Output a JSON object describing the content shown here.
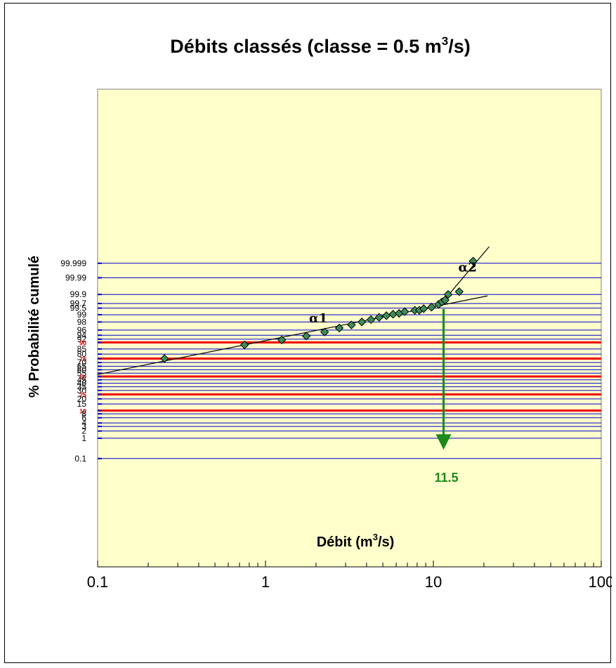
{
  "chart_data": {
    "type": "scatter",
    "title": "Débits classés (classe = 0.5 m",
    "title_sup": "3",
    "title_suffix": "/s)",
    "xlabel": "Débit (m",
    "xlabel_sup": "3",
    "xlabel_suffix": "/s)",
    "ylabel": "% Probabilité cumulé",
    "x_scale": "log",
    "xlim": [
      0.1,
      100
    ],
    "x_ticks": [
      "0.1",
      "1",
      "10",
      "100"
    ],
    "y_scale": "probability",
    "y_ticks": [
      {
        "label": "99.999",
        "value": 99.999,
        "highlight": false
      },
      {
        "label": "99.99",
        "value": 99.99,
        "highlight": false
      },
      {
        "label": "99.9",
        "value": 99.9,
        "highlight": false
      },
      {
        "label": "99.7",
        "value": 99.7,
        "highlight": false
      },
      {
        "label": "99.5",
        "value": 99.5,
        "highlight": false
      },
      {
        "label": "99",
        "value": 99,
        "highlight": false
      },
      {
        "label": "98",
        "value": 98,
        "highlight": false
      },
      {
        "label": "96",
        "value": 96,
        "highlight": false
      },
      {
        "label": "94",
        "value": 94,
        "highlight": false
      },
      {
        "label": "92",
        "value": 92,
        "highlight": false
      },
      {
        "label": "90",
        "value": 90,
        "highlight": true
      },
      {
        "label": "85",
        "value": 85,
        "highlight": false
      },
      {
        "label": "80",
        "value": 80,
        "highlight": false
      },
      {
        "label": "75",
        "value": 75,
        "highlight": true
      },
      {
        "label": "70",
        "value": 70,
        "highlight": false
      },
      {
        "label": "65",
        "value": 65,
        "highlight": false
      },
      {
        "label": "60",
        "value": 60,
        "highlight": false
      },
      {
        "label": "55",
        "value": 55,
        "highlight": false
      },
      {
        "label": "50",
        "value": 50,
        "highlight": true
      },
      {
        "label": "45",
        "value": 45,
        "highlight": false
      },
      {
        "label": "40",
        "value": 40,
        "highlight": false
      },
      {
        "label": "35",
        "value": 35,
        "highlight": false
      },
      {
        "label": "30",
        "value": 30,
        "highlight": false
      },
      {
        "label": "25",
        "value": 25,
        "highlight": true
      },
      {
        "label": "20",
        "value": 20,
        "highlight": false
      },
      {
        "label": "15",
        "value": 15,
        "highlight": false
      },
      {
        "label": "10",
        "value": 10,
        "highlight": true
      },
      {
        "label": "8",
        "value": 8,
        "highlight": false
      },
      {
        "label": "6",
        "value": 6,
        "highlight": false
      },
      {
        "label": "4",
        "value": 4,
        "highlight": false
      },
      {
        "label": "3",
        "value": 3,
        "highlight": false
      },
      {
        "label": "2",
        "value": 2,
        "highlight": false
      },
      {
        "label": "1",
        "value": 1,
        "highlight": false
      },
      {
        "label": "0.1",
        "value": 0.1,
        "highlight": false
      }
    ],
    "grid": true,
    "plot_background": "#ffffcc",
    "grid_color": "#0000cc",
    "highlight_grid_color": "#ee0000",
    "marker_color": "#3c8c5a",
    "points": [
      {
        "x": 0.25,
        "y": 75
      },
      {
        "x": 0.75,
        "y": 88.3
      },
      {
        "x": 1.25,
        "y": 91.6
      },
      {
        "x": 1.75,
        "y": 93.6
      },
      {
        "x": 2.25,
        "y": 95.3
      },
      {
        "x": 2.75,
        "y": 96.6
      },
      {
        "x": 3.25,
        "y": 97.4
      },
      {
        "x": 3.75,
        "y": 98.0
      },
      {
        "x": 4.25,
        "y": 98.4
      },
      {
        "x": 4.75,
        "y": 98.7
      },
      {
        "x": 5.25,
        "y": 98.9
      },
      {
        "x": 5.75,
        "y": 99.05
      },
      {
        "x": 6.25,
        "y": 99.13
      },
      {
        "x": 6.75,
        "y": 99.27
      },
      {
        "x": 7.75,
        "y": 99.37
      },
      {
        "x": 8.25,
        "y": 99.37
      },
      {
        "x": 8.75,
        "y": 99.47
      },
      {
        "x": 9.75,
        "y": 99.55
      },
      {
        "x": 10.75,
        "y": 99.67
      },
      {
        "x": 11.25,
        "y": 99.75
      },
      {
        "x": 11.75,
        "y": 99.8
      },
      {
        "x": 12.25,
        "y": 99.9
      },
      {
        "x": 14.25,
        "y": 99.93
      },
      {
        "x": 17.25,
        "y": 99.9993
      }
    ],
    "fit_lines": [
      {
        "label": "α1",
        "from": {
          "x": 0.1,
          "y": 53
        },
        "to": {
          "x": 21,
          "y": 99.88
        }
      },
      {
        "label": "α2",
        "from": {
          "x": 11.5,
          "y": 99.78
        },
        "to": {
          "x": 21.5,
          "y": 99.99995
        }
      }
    ],
    "annotation": {
      "label": "11.5",
      "x": 11.5,
      "from_y": 99.45,
      "to_y": 0.4
    }
  }
}
